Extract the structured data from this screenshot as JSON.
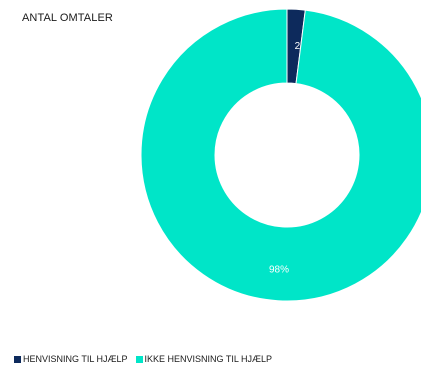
{
  "chart_data": {
    "type": "pie",
    "title": "ANTAL OMTALER",
    "categories": [
      "HENVISNING TIL HJÆLP",
      "IKKE HENVISNING TIL HJÆLP"
    ],
    "values": [
      2,
      98
    ],
    "data_labels": [
      "2%",
      "98%"
    ],
    "colors": [
      "#0d2a5c",
      "#00e5c8"
    ],
    "donut": true,
    "legend": "bottom-left"
  }
}
